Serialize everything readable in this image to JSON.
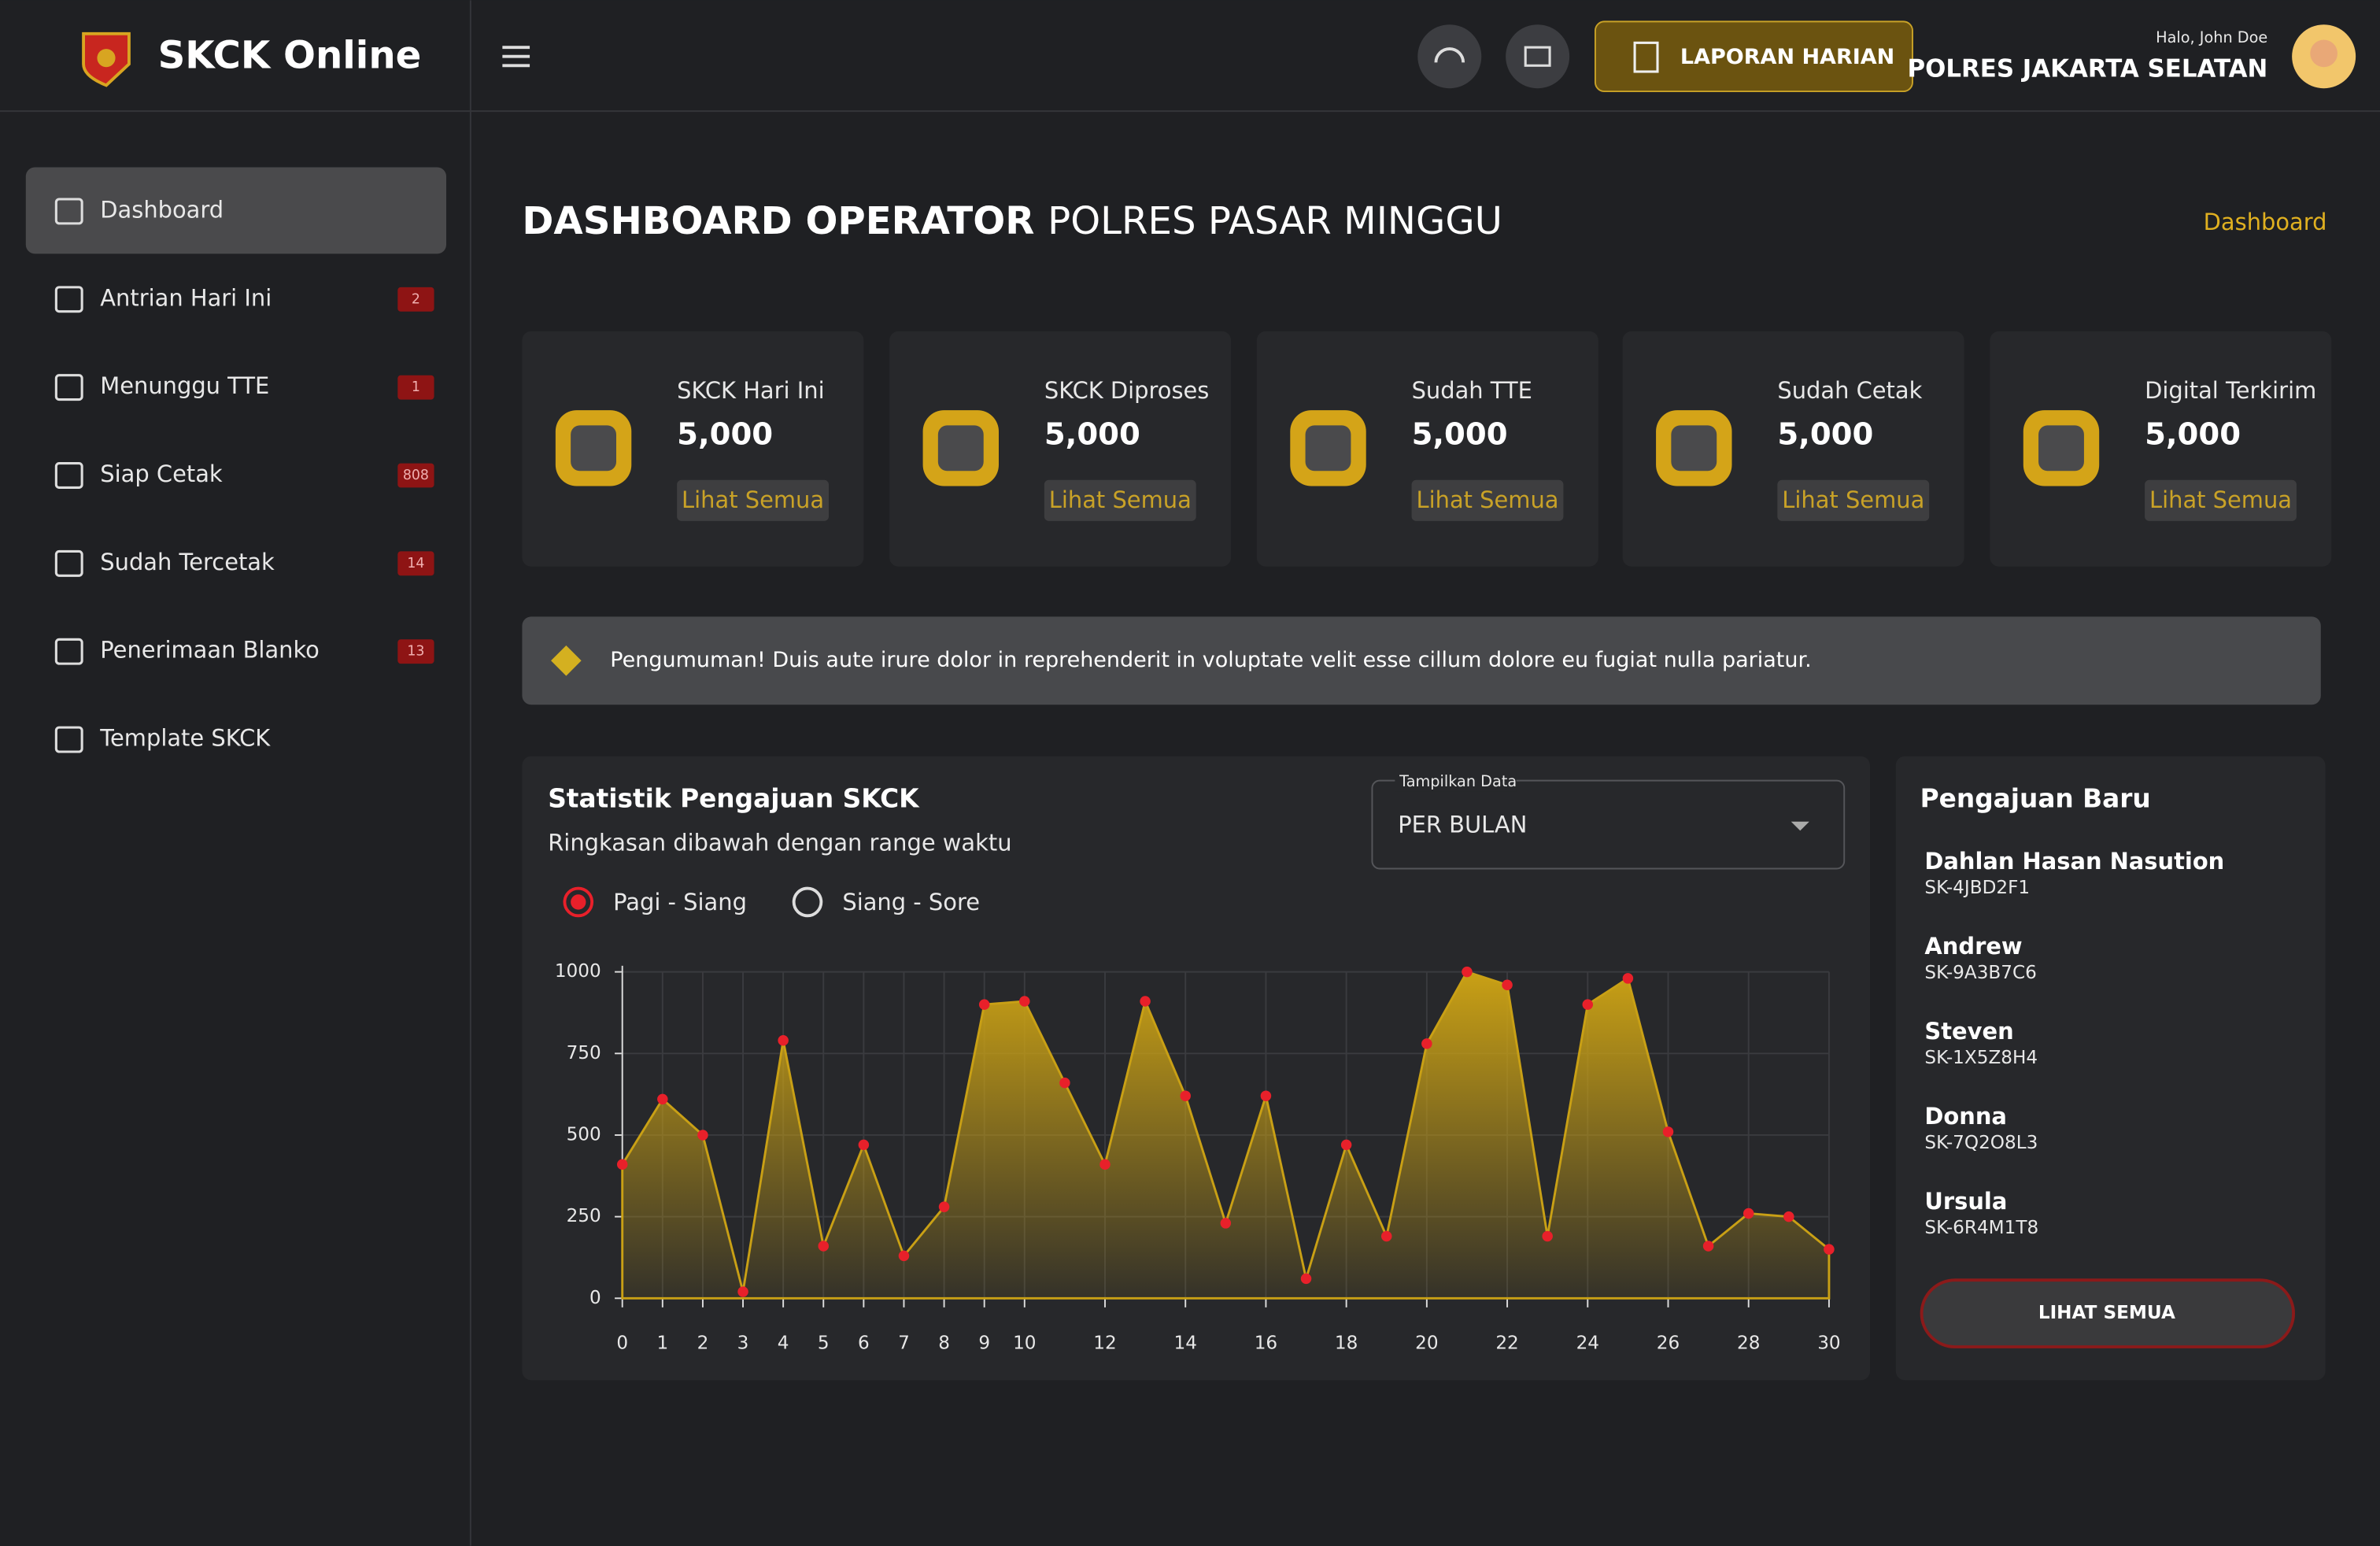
{
  "header": {
    "app_name": "SKCK Online",
    "button": "LAPORAN HARIAN",
    "greeting": "Halo, John Doe",
    "unit": "POLRES JAKARTA SELATAN"
  },
  "sidebar": {
    "items": [
      {
        "label": "Dashboard"
      },
      {
        "label": "Antrian Hari Ini",
        "badge": "2"
      },
      {
        "label": "Menunggu TTE",
        "badge": "1"
      },
      {
        "label": "Siap Cetak",
        "badge": "808"
      },
      {
        "label": "Sudah Tercetak",
        "badge": "14"
      },
      {
        "label": "Penerimaan Blanko",
        "badge": "13"
      },
      {
        "label": "Template SKCK"
      }
    ]
  },
  "page": {
    "title_bold": "DASHBOARD OPERATOR",
    "title_light": "POLRES PASAR MINGGU",
    "breadcrumb": "Dashboard"
  },
  "cards": [
    {
      "title": "SKCK Hari Ini",
      "value": "5,000",
      "link": "Lihat Semua"
    },
    {
      "title": "SKCK Diproses",
      "value": "5,000",
      "link": "Lihat Semua"
    },
    {
      "title": "Sudah TTE",
      "value": "5,000",
      "link": "Lihat Semua"
    },
    {
      "title": "Sudah Cetak",
      "value": "5,000",
      "link": "Lihat Semua"
    },
    {
      "title": "Digital Terkirim",
      "value": "5,000",
      "link": "Lihat Semua"
    }
  ],
  "announcement": "Pengumuman! Duis aute irure dolor in reprehenderit in voluptate velit esse cillum dolore eu fugiat nulla pariatur.",
  "stats": {
    "title": "Statistik Pengajuan SKCK",
    "subtitle": "Ringkasan dibawah dengan range waktu",
    "select_label": "Tampilkan Data",
    "select_value": "PER BULAN",
    "options": [
      "Pagi - Siang",
      "Siang - Sore"
    ]
  },
  "chart_data": {
    "type": "area",
    "x": [
      0,
      1,
      2,
      3,
      4,
      5,
      6,
      7,
      8,
      9,
      10,
      11,
      12,
      13,
      14,
      15,
      16,
      17,
      18,
      19,
      20,
      21,
      22,
      23,
      24,
      25,
      26,
      27,
      28,
      29,
      30
    ],
    "values": [
      410,
      610,
      500,
      20,
      790,
      160,
      470,
      130,
      280,
      900,
      910,
      660,
      410,
      910,
      620,
      230,
      620,
      60,
      470,
      190,
      780,
      1000,
      960,
      190,
      900,
      980,
      510,
      160,
      260,
      250,
      150
    ],
    "color": "#c9a015",
    "point_color": "#e8202a",
    "xlim": [
      0,
      30
    ],
    "ylim": [
      0,
      1000
    ],
    "xticks": [
      0,
      1,
      2,
      3,
      4,
      5,
      6,
      7,
      8,
      9,
      10,
      12,
      14,
      16,
      18,
      20,
      22,
      24,
      26,
      28,
      30
    ],
    "yticks": [
      0,
      250,
      500,
      750,
      1000
    ],
    "grid": true
  },
  "recent": {
    "title": "Pengajuan Baru",
    "items": [
      {
        "name": "Dahlan Hasan Nasution",
        "code": "SK-4JBD2F1"
      },
      {
        "name": "Andrew",
        "code": "SK-9A3B7C6"
      },
      {
        "name": "Steven",
        "code": "SK-1X5Z8H4"
      },
      {
        "name": "Donna",
        "code": "SK-7Q2O8L3"
      },
      {
        "name": "Ursula",
        "code": "SK-6R4M1T8"
      }
    ],
    "button": "LIHAT SEMUA"
  }
}
